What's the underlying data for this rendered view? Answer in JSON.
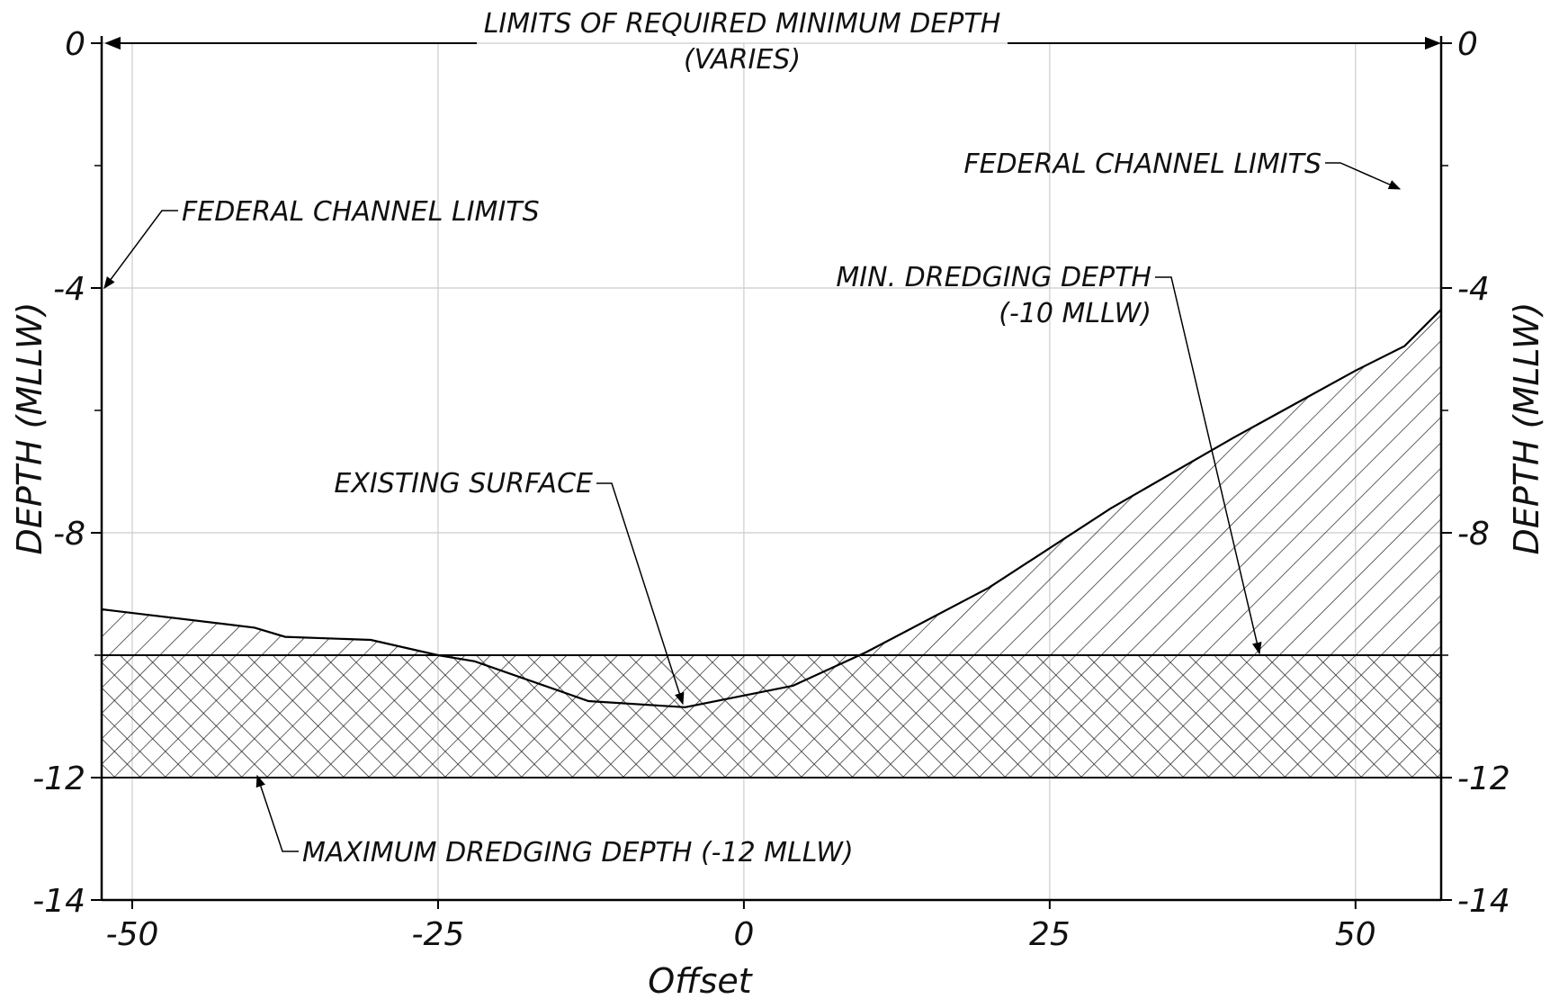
{
  "chart_data": {
    "type": "area",
    "xlabel": "Offset",
    "ylabel_left": "DEPTH (MLLW)",
    "ylabel_right": "DEPTH (MLLW)",
    "xlim": [
      -52.5,
      57
    ],
    "ylim": [
      -14,
      0
    ],
    "xticks": [
      -50,
      -25,
      0,
      25,
      50
    ],
    "xtick_labels": [
      "-50",
      "-25",
      "0",
      "25",
      "50"
    ],
    "yticks": [
      0,
      -4,
      -8,
      -12,
      -14
    ],
    "ytick_labels": [
      "0",
      "-4",
      "-8",
      "-12",
      "-14"
    ],
    "grid": true,
    "series": [
      {
        "x": [
          -52.5,
          -40,
          -37.5,
          -30.5,
          -25,
          -22,
          -12.7,
          -4.8,
          4,
          10,
          20,
          30,
          40,
          50,
          54,
          57
        ],
        "y": [
          -9.25,
          -9.55,
          -9.7,
          -9.75,
          -10,
          -10.1,
          -10.75,
          -10.85,
          -10.5,
          -9.95,
          -8.9,
          -7.6,
          -6.45,
          -5.35,
          -4.95,
          -4.35
        ]
      }
    ],
    "reference_lines": [
      {
        "y": -10,
        "label": "MIN. DREDGING DEPTH (-10 MLLW)"
      },
      {
        "y": -12,
        "label": "MAXIMUM DREDGING DEPTH (-12 MLLW)"
      }
    ],
    "annotations": {
      "top_limits_line1": "LIMITS OF REQUIRED MINIMUM DEPTH",
      "top_limits_line2": "(VARIES)",
      "federal_left": "FEDERAL CHANNEL LIMITS",
      "federal_right": "FEDERAL CHANNEL LIMITS",
      "min_dredge_line1": "MIN. DREDGING DEPTH",
      "min_dredge_line2": "(-10 MLLW)",
      "existing_surface": "EXISTING SURFACE",
      "max_dredge": "MAXIMUM DREDGING DEPTH (-12 MLLW)"
    },
    "colors": {
      "line": "#000000",
      "grid": "#cccccc",
      "hatch": "#222222"
    }
  }
}
